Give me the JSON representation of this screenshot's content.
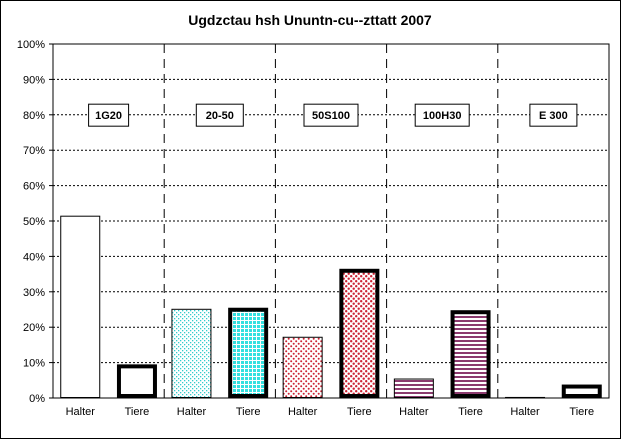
{
  "chart_data": {
    "type": "bar",
    "title": "Ugdzctau hsh Ununtn-cu--zttatt 2007",
    "ylim": [
      0,
      100
    ],
    "yticks": [
      "0%",
      "10%",
      "20%",
      "30%",
      "40%",
      "50%",
      "60%",
      "70%",
      "80%",
      "90%",
      "100%"
    ],
    "grid": true,
    "groups": [
      {
        "label": "1G20",
        "bars": [
          {
            "category": "Halter",
            "value": 51.5
          },
          {
            "category": "Tiere",
            "value": 9.5
          }
        ]
      },
      {
        "label": "20-50",
        "bars": [
          {
            "category": "Halter",
            "value": 25.2
          },
          {
            "category": "Tiere",
            "value": 25.5
          }
        ]
      },
      {
        "label": "50S100",
        "bars": [
          {
            "category": "Halter",
            "value": 17.3
          },
          {
            "category": "Tiere",
            "value": 36.5
          }
        ]
      },
      {
        "label": "100H30",
        "bars": [
          {
            "category": "Halter",
            "value": 5.5
          },
          {
            "category": "Tiere",
            "value": 24.8
          }
        ]
      },
      {
        "label": "E 300",
        "bars": [
          {
            "category": "Halter",
            "value": 0.3
          },
          {
            "category": "Tiere",
            "value": 3.8
          }
        ]
      }
    ]
  }
}
